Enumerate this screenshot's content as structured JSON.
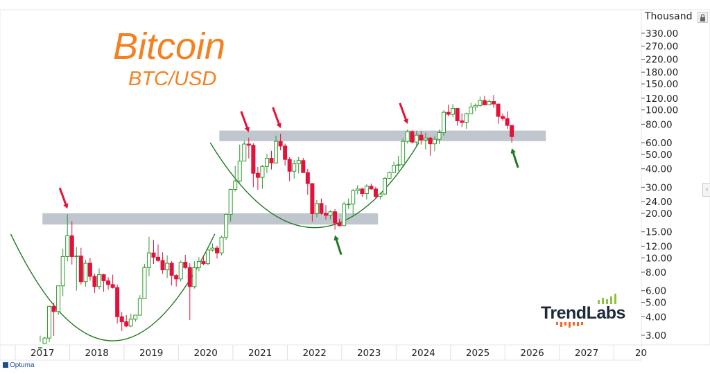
{
  "chart_data": {
    "type": "candlestick",
    "title": "Bitcoin",
    "subtitle": "BTC/USD",
    "ylabel": "Thousand",
    "yscale": "log",
    "ylim": [
      2.7,
      400
    ],
    "y_ticks": [
      "330.00",
      "270.00",
      "220.00",
      "180.00",
      "150.00",
      "120.00",
      "100.00",
      "80.00",
      "60.00",
      "50.00",
      "40.00",
      "30.00",
      "24.00",
      "20.00",
      "15.00",
      "12.00",
      "10.00",
      "8.00",
      "6.00",
      "5.00",
      "4.00",
      "3.00"
    ],
    "x_ticks": [
      "2017",
      "2018",
      "2019",
      "2020",
      "2021",
      "2022",
      "2023",
      "2024",
      "2025",
      "2026",
      "2027",
      "20"
    ],
    "interval": "monthly",
    "start": "2017-06",
    "up_color": "#2e9a2e",
    "down_color": "#e3123a",
    "ohlc": [
      [
        2.3,
        2.98,
        2.1,
        2.48
      ],
      [
        2.48,
        2.92,
        1.83,
        2.87
      ],
      [
        2.87,
        4.75,
        2.6,
        4.7
      ],
      [
        4.7,
        4.98,
        2.97,
        4.34
      ],
      [
        4.34,
        6.47,
        4.1,
        6.47
      ],
      [
        6.47,
        11.5,
        5.5,
        10.2
      ],
      [
        10.2,
        19.7,
        9.5,
        14.1
      ],
      [
        14.1,
        17.7,
        9.0,
        10.2
      ],
      [
        10.2,
        11.8,
        6.0,
        10.3
      ],
      [
        10.3,
        11.7,
        6.6,
        6.9
      ],
      [
        6.9,
        9.7,
        6.4,
        9.2
      ],
      [
        9.2,
        10.0,
        7.0,
        7.5
      ],
      [
        7.5,
        7.8,
        5.8,
        6.4
      ],
      [
        6.4,
        8.5,
        6.1,
        7.7
      ],
      [
        7.7,
        7.8,
        5.9,
        7.0
      ],
      [
        7.0,
        7.4,
        6.1,
        6.6
      ],
      [
        6.6,
        7.7,
        6.2,
        6.3
      ],
      [
        6.3,
        6.6,
        3.6,
        4.0
      ],
      [
        4.0,
        4.3,
        3.2,
        3.7
      ],
      [
        3.7,
        4.1,
        3.4,
        3.46
      ],
      [
        3.46,
        4.2,
        3.4,
        3.85
      ],
      [
        3.85,
        4.1,
        3.7,
        4.1
      ],
      [
        4.1,
        5.6,
        4.1,
        5.3
      ],
      [
        5.3,
        9.1,
        5.3,
        8.6
      ],
      [
        8.6,
        13.9,
        7.5,
        10.8
      ],
      [
        10.8,
        13.2,
        9.1,
        10.1
      ],
      [
        10.1,
        12.3,
        9.4,
        9.6
      ],
      [
        9.6,
        10.9,
        7.8,
        8.3
      ],
      [
        8.3,
        10.4,
        7.3,
        9.2
      ],
      [
        9.2,
        9.5,
        6.5,
        7.6
      ],
      [
        7.6,
        7.75,
        6.4,
        7.2
      ],
      [
        7.2,
        9.6,
        6.9,
        9.35
      ],
      [
        9.35,
        10.5,
        8.4,
        8.6
      ],
      [
        8.6,
        9.2,
        3.8,
        6.4
      ],
      [
        6.4,
        9.5,
        6.2,
        8.6
      ],
      [
        8.6,
        10.1,
        8.1,
        9.45
      ],
      [
        9.45,
        10.4,
        8.9,
        9.14
      ],
      [
        9.14,
        11.4,
        8.9,
        11.3
      ],
      [
        11.3,
        12.5,
        11.0,
        11.65
      ],
      [
        11.65,
        12.1,
        9.9,
        10.8
      ],
      [
        10.8,
        14.1,
        10.4,
        13.8
      ],
      [
        13.8,
        19.9,
        13.2,
        19.7
      ],
      [
        19.7,
        29.3,
        17.6,
        29.0
      ],
      [
        29.0,
        41.9,
        28.1,
        33.1
      ],
      [
        33.1,
        58.3,
        32.3,
        45.1
      ],
      [
        45.1,
        61.7,
        44.9,
        58.8
      ],
      [
        58.8,
        64.9,
        47.0,
        57.7
      ],
      [
        57.7,
        59.6,
        30.0,
        37.3
      ],
      [
        37.3,
        41.3,
        28.8,
        35.0
      ],
      [
        35.0,
        42.4,
        29.3,
        41.5
      ],
      [
        41.5,
        50.5,
        37.3,
        47.1
      ],
      [
        47.1,
        52.9,
        39.6,
        43.8
      ],
      [
        43.8,
        67.0,
        43.3,
        61.3
      ],
      [
        61.3,
        69.0,
        53.3,
        57.0
      ],
      [
        57.0,
        59.1,
        42.0,
        46.3
      ],
      [
        46.3,
        47.9,
        33.0,
        38.5
      ],
      [
        38.5,
        45.8,
        34.3,
        43.2
      ],
      [
        43.2,
        48.2,
        37.2,
        45.5
      ],
      [
        45.5,
        47.4,
        37.6,
        37.7
      ],
      [
        37.7,
        40.0,
        26.7,
        31.8
      ],
      [
        31.8,
        31.9,
        17.6,
        19.9
      ],
      [
        19.9,
        24.6,
        18.8,
        23.3
      ],
      [
        23.3,
        25.2,
        19.6,
        20.0
      ],
      [
        20.0,
        22.7,
        18.1,
        19.4
      ],
      [
        19.4,
        21.0,
        18.2,
        20.5
      ],
      [
        20.5,
        21.4,
        15.5,
        17.2
      ],
      [
        17.2,
        18.4,
        16.3,
        16.5
      ],
      [
        16.5,
        23.9,
        16.5,
        23.1
      ],
      [
        23.1,
        25.2,
        21.4,
        23.1
      ],
      [
        23.1,
        29.2,
        19.6,
        28.5
      ],
      [
        28.5,
        31.0,
        26.9,
        29.2
      ],
      [
        29.2,
        29.8,
        25.8,
        27.2
      ],
      [
        27.2,
        31.4,
        24.8,
        30.5
      ],
      [
        30.5,
        31.8,
        28.9,
        29.2
      ],
      [
        29.2,
        30.2,
        25.2,
        26.0
      ],
      [
        26.0,
        27.5,
        24.9,
        27.0
      ],
      [
        27.0,
        35.2,
        26.6,
        34.5
      ],
      [
        34.5,
        38.4,
        34.1,
        37.7
      ],
      [
        37.7,
        44.7,
        37.7,
        42.3
      ],
      [
        42.3,
        48.9,
        38.6,
        42.6
      ],
      [
        42.6,
        64.0,
        41.9,
        61.2
      ],
      [
        61.2,
        73.8,
        59.2,
        71.3
      ],
      [
        71.3,
        72.8,
        59.6,
        60.6
      ],
      [
        60.6,
        71.9,
        56.6,
        67.5
      ],
      [
        67.5,
        71.9,
        58.4,
        62.7
      ],
      [
        62.7,
        70.0,
        53.9,
        64.6
      ],
      [
        64.6,
        65.6,
        49.1,
        59.0
      ],
      [
        59.0,
        66.5,
        52.6,
        63.3
      ],
      [
        63.3,
        73.6,
        58.9,
        70.2
      ],
      [
        70.2,
        99.6,
        66.8,
        96.4
      ],
      [
        96.4,
        108.3,
        90.5,
        93.4
      ],
      [
        93.4,
        109.6,
        89.3,
        102.4
      ],
      [
        102.4,
        102.5,
        78.2,
        84.4
      ],
      [
        84.4,
        95.0,
        76.6,
        82.5
      ],
      [
        82.5,
        95.8,
        74.6,
        94.2
      ],
      [
        94.2,
        111.9,
        93.4,
        104.6
      ],
      [
        104.6,
        110.4,
        98.2,
        107.1
      ],
      [
        107.1,
        123.2,
        105.3,
        115.8
      ],
      [
        115.8,
        124.5,
        107.3,
        108.2
      ],
      [
        108.2,
        117.9,
        107.3,
        114.0
      ],
      [
        114.0,
        126.2,
        103.5,
        109.6
      ],
      [
        109.6,
        110.6,
        80.6,
        90.4
      ],
      [
        90.4,
        94.6,
        84.4,
        87.5
      ],
      [
        87.5,
        97.9,
        74.6,
        78.6
      ],
      [
        78.6,
        79.3,
        60.0,
        66.0
      ]
    ],
    "annotations": {
      "zones": [
        {
          "from": "2017-07",
          "to": "2023-08",
          "low": 16.8,
          "high": 20.0,
          "color": "#b4bcc5"
        },
        {
          "from": "2020-10",
          "to": "2026-09",
          "low": 61.5,
          "high": 72.5,
          "color": "#b4bcc5"
        }
      ],
      "arcs": [
        {
          "from": "2016-12",
          "to": "2020-09",
          "top": 14.5,
          "bottom": 2.75,
          "color": "#1e7a1e"
        },
        {
          "from": "2020-08",
          "to": "2024-06",
          "top": 60.0,
          "bottom": 16.0,
          "color": "#1e7a1e"
        }
      ],
      "red_arrows": [
        "2017-12",
        "2021-04",
        "2021-11",
        "2024-03"
      ],
      "green_arrows": [
        "2022-11",
        "2026-02"
      ]
    }
  },
  "ui": {
    "unit_label": "Thousand",
    "logo_text": "TrendLabs",
    "footer_brand": "Optuma"
  }
}
